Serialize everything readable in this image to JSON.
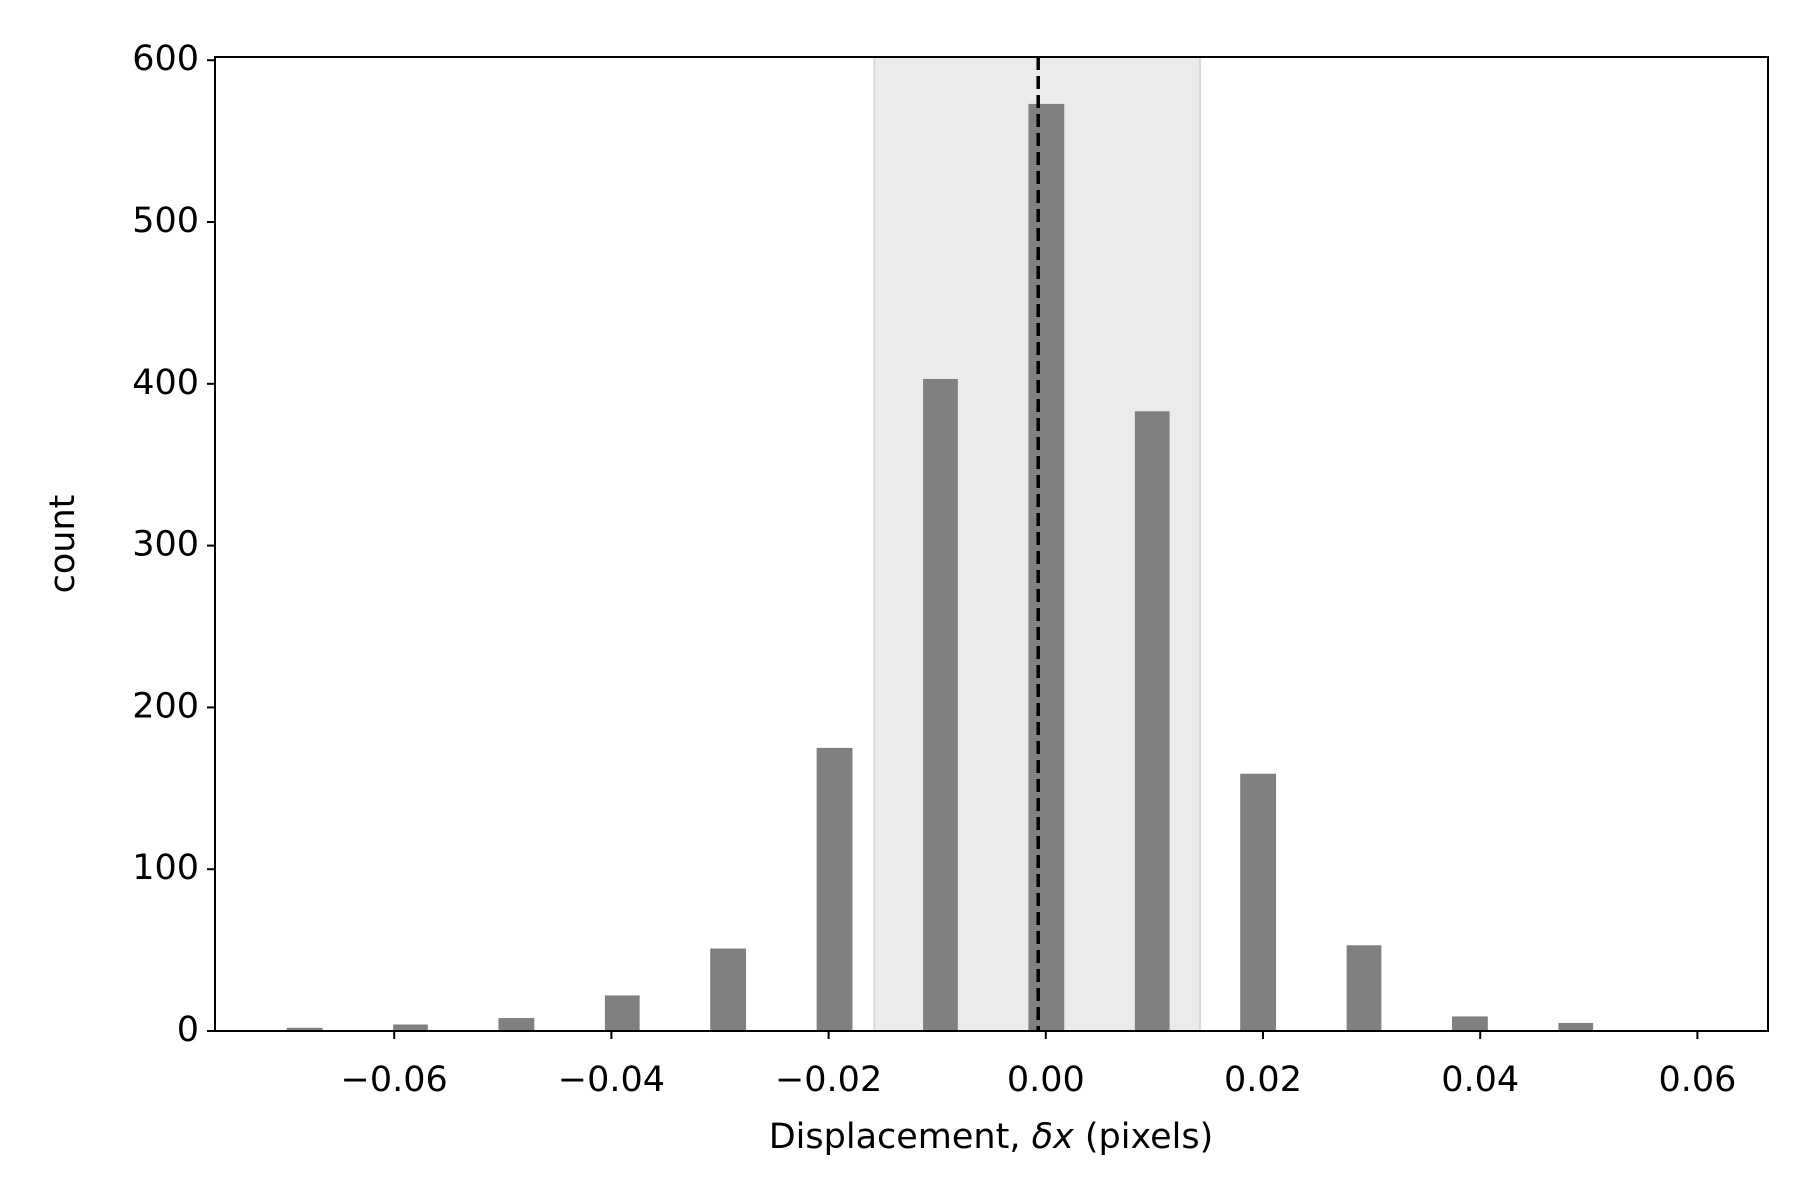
{
  "chart_data": {
    "type": "histogram",
    "xlabel": [
      "Displacement, ",
      "δx",
      " (pixels)"
    ],
    "ylabel": "count",
    "color": "#808080",
    "bins": [
      -0.0699,
      -0.0666,
      -0.0634,
      -0.0601,
      -0.0569,
      -0.0536,
      -0.0504,
      -0.0471,
      -0.0439,
      -0.0406,
      -0.0374,
      -0.0341,
      -0.0309,
      -0.0276,
      -0.0244,
      -0.0211,
      -0.0178,
      -0.0146,
      -0.0113,
      -0.0081,
      -0.0048,
      -0.0016,
      0.0017,
      0.0049,
      0.0082,
      0.0114,
      0.0147,
      0.0179,
      0.0212,
      0.0244,
      0.0277,
      0.0309,
      0.0342,
      0.0374,
      0.0407,
      0.0439,
      0.0472,
      0.0504
    ],
    "values": [
      2,
      0,
      0,
      4,
      0,
      0,
      8,
      0,
      0,
      22,
      0,
      0,
      51,
      0,
      0,
      175,
      0,
      0,
      403,
      0,
      0,
      573,
      0,
      0,
      383,
      0,
      0,
      159,
      0,
      0,
      53,
      0,
      0,
      9,
      0,
      0,
      5
    ],
    "vspan": [
      -0.0158,
      0.0142
    ],
    "vspan_color": "#ebebeb",
    "vline": -0.0007,
    "xlim": [
      -0.0765,
      0.0665
    ],
    "ylim": [
      0,
      602
    ],
    "xticks": [
      {
        "value": -0.06,
        "label": "−0.06"
      },
      {
        "value": -0.04,
        "label": "−0.04"
      },
      {
        "value": -0.02,
        "label": "−0.02"
      },
      {
        "value": 0,
        "label": "0.00"
      },
      {
        "value": 0.02,
        "label": "0.02"
      },
      {
        "value": 0.04,
        "label": "0.04"
      },
      {
        "value": 0.06,
        "label": "0.06"
      }
    ],
    "yticks": [
      0,
      100,
      200,
      300,
      400,
      500,
      600
    ]
  }
}
